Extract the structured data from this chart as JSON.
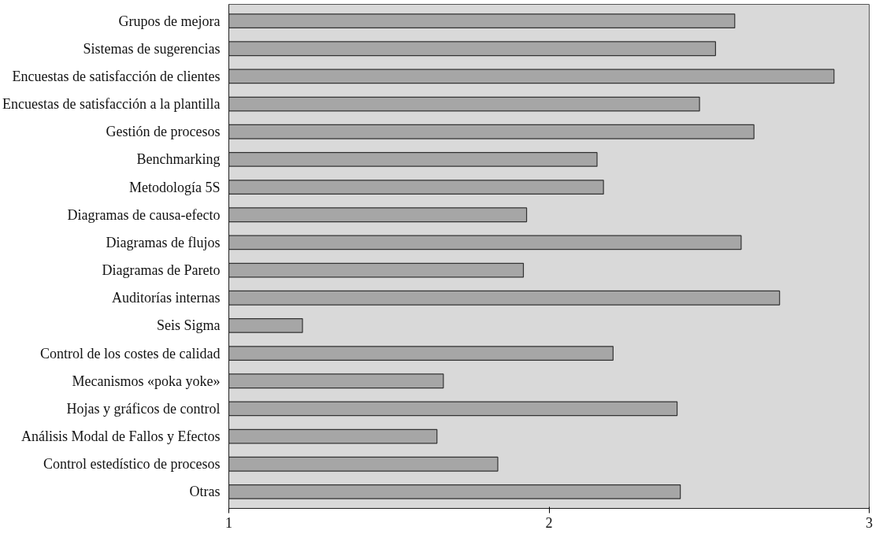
{
  "chart_data": {
    "type": "bar",
    "orientation": "horizontal",
    "categories": [
      "Grupos de mejora",
      "Sistemas de sugerencias",
      "Encuestas de satisfacción de clientes",
      "Encuestas de satisfacción a la plantilla",
      "Gestión de procesos",
      "Benchmarking",
      "Metodología 5S",
      "Diagramas de causa-efecto",
      "Diagramas de flujos",
      "Diagramas de Pareto",
      "Auditorías internas",
      "Seis Sigma",
      "Control de los costes de calidad",
      "Mecanismos «poka yoke»",
      "Hojas y gráficos de control",
      "Análisis Modal de Fallos y Efectos",
      "Control estedístico de procesos",
      "Otras"
    ],
    "values": [
      2.58,
      2.52,
      2.89,
      2.47,
      2.64,
      2.15,
      2.17,
      1.93,
      2.6,
      1.92,
      2.72,
      1.23,
      2.2,
      1.67,
      2.4,
      1.65,
      1.84,
      2.41
    ],
    "color": "#a6a6a6",
    "xlim": [
      1,
      3
    ],
    "xticks": [
      1,
      2,
      3
    ],
    "grid": false
  }
}
